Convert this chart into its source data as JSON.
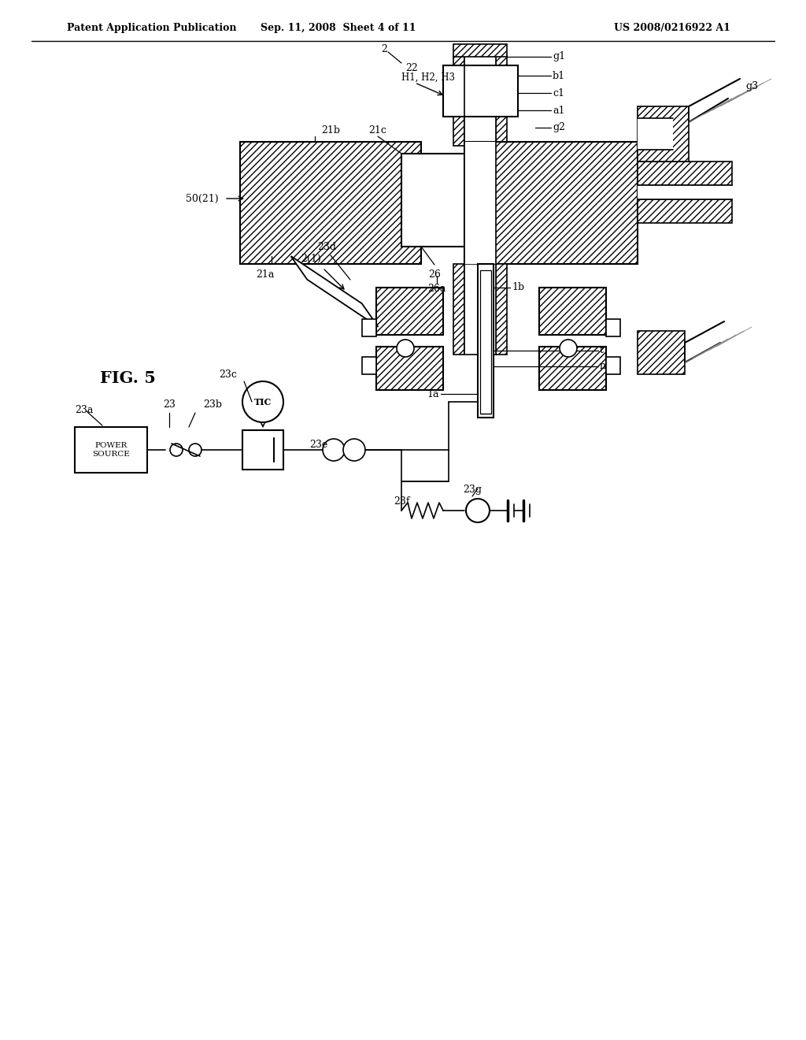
{
  "bg_color": "#ffffff",
  "header_left": "Patent Application Publication",
  "header_mid": "Sep. 11, 2008  Sheet 4 of 11",
  "header_right": "US 2008/0216922 A1",
  "fig_label": "FIG. 5"
}
